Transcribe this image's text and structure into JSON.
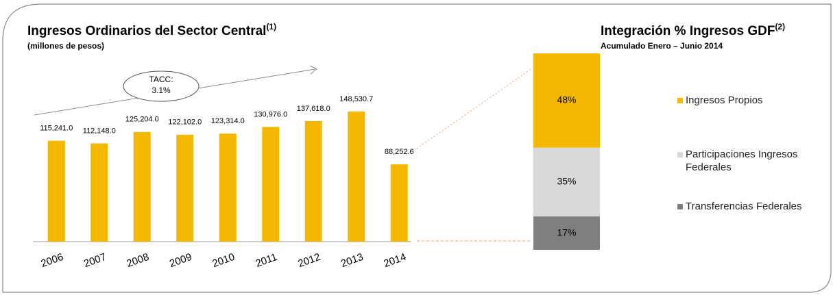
{
  "chart_data": [
    {
      "type": "bar",
      "title": "Ingresos Ordinarios del Sector Central",
      "title_note": "(1)",
      "subtitle": "(millones de pesos)",
      "annotation": [
        "TACC:",
        "3.1%"
      ],
      "categories": [
        "2006",
        "2007",
        "2008",
        "2009",
        "2010",
        "2011",
        "2012",
        "2013",
        "2014"
      ],
      "values": [
        115241.0,
        112148.0,
        125204.0,
        122102.0,
        123314.0,
        130976.0,
        137618.0,
        148530.7,
        88252.6
      ],
      "value_labels": [
        "115,241.0",
        "112,148.0",
        "125,204.0",
        "122,102.0",
        "123,314.0",
        "130,976.0",
        "137,618.0",
        "148,530.7",
        "88,252.6"
      ],
      "color": "#f5b800"
    },
    {
      "type": "stacked_bar",
      "title": "Integración % Ingresos GDF",
      "title_note": "(2)",
      "subtitle": "Acumulado  Enero – Junio 2014",
      "series": [
        {
          "name": "Ingresos Propios",
          "color": "#f5b800",
          "values": [
            48
          ],
          "value_labels": [
            "48%"
          ]
        },
        {
          "name": "Participaciones Ingresos Federales",
          "color": "#d9d9d9",
          "values": [
            35
          ],
          "value_labels": [
            "35%"
          ]
        },
        {
          "name": "Transferencias Federales",
          "color": "#7f7f7f",
          "values": [
            17
          ],
          "value_labels": [
            "17%"
          ]
        }
      ]
    }
  ]
}
